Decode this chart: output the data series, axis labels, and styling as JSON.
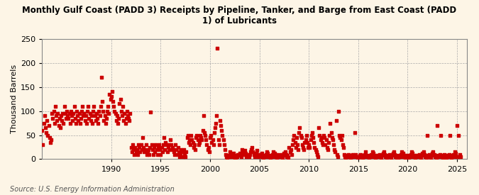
{
  "title": "Monthly Gulf Coast (PADD 3) Receipts by Pipeline, Tanker, and Barge from East Coast (PADD\n1) of Lubricants",
  "ylabel": "Thousand Barrels",
  "source": "Source: U.S. Energy Information Administration",
  "background_color": "#fdf5e6",
  "dot_color": "#cc0000",
  "grid_color": "#aaaaaa",
  "xlim": [
    1983,
    2026
  ],
  "ylim": [
    0,
    250
  ],
  "yticks": [
    0,
    50,
    100,
    150,
    200,
    250
  ],
  "xticks": [
    1990,
    1995,
    2000,
    2005,
    2010,
    2015,
    2020,
    2025
  ],
  "start_year": 1983,
  "start_month": 1,
  "values": [
    60,
    30,
    75,
    90,
    65,
    55,
    80,
    50,
    70,
    45,
    35,
    40,
    95,
    85,
    100,
    75,
    110,
    90,
    80,
    95,
    70,
    85,
    65,
    90,
    80,
    95,
    75,
    110,
    95,
    85,
    100,
    90,
    85,
    95,
    75,
    100,
    90,
    80,
    95,
    110,
    85,
    75,
    100,
    90,
    80,
    95,
    75,
    85,
    100,
    110,
    90,
    95,
    80,
    90,
    75,
    100,
    110,
    85,
    95,
    80,
    90,
    75,
    100,
    110,
    90,
    80,
    95,
    85,
    75,
    100,
    90,
    110,
    170,
    120,
    100,
    80,
    90,
    75,
    85,
    100,
    110,
    95,
    135,
    125,
    130,
    140,
    120,
    110,
    100,
    95,
    80,
    90,
    75,
    85,
    115,
    125,
    100,
    90,
    110,
    80,
    95,
    75,
    85,
    100,
    90,
    85,
    80,
    95,
    25,
    15,
    30,
    20,
    10,
    25,
    15,
    20,
    10,
    30,
    25,
    15,
    30,
    20,
    45,
    25,
    15,
    20,
    30,
    10,
    15,
    20,
    10,
    25,
    98,
    30,
    20,
    10,
    25,
    15,
    30,
    20,
    10,
    25,
    30,
    20,
    10,
    25,
    15,
    30,
    45,
    20,
    35,
    30,
    15,
    25,
    30,
    20,
    40,
    30,
    25,
    20,
    15,
    10,
    30,
    20,
    10,
    25,
    15,
    5,
    10,
    20,
    15,
    5,
    20,
    10,
    5,
    15,
    45,
    50,
    35,
    40,
    30,
    50,
    40,
    35,
    25,
    30,
    20,
    45,
    50,
    40,
    30,
    35,
    50,
    45,
    40,
    60,
    90,
    55,
    50,
    40,
    30,
    20,
    25,
    15,
    45,
    50,
    35,
    40,
    30,
    55,
    65,
    75,
    90,
    230,
    40,
    30,
    80,
    70,
    60,
    50,
    40,
    30,
    20,
    10,
    5,
    0,
    8,
    5,
    15,
    10,
    5,
    8,
    12,
    5,
    0,
    3,
    8,
    5,
    10,
    8,
    12,
    8,
    5,
    20,
    15,
    10,
    18,
    12,
    5,
    8,
    10,
    5,
    10,
    15,
    20,
    25,
    15,
    10,
    5,
    8,
    12,
    18,
    10,
    5,
    10,
    5,
    8,
    12,
    5,
    3,
    8,
    5,
    10,
    15,
    12,
    5,
    5,
    3,
    8,
    5,
    10,
    15,
    12,
    5,
    8,
    3,
    10,
    5,
    5,
    8,
    10,
    5,
    3,
    8,
    12,
    15,
    10,
    5,
    8,
    3,
    25,
    15,
    20,
    10,
    30,
    40,
    50,
    35,
    25,
    45,
    30,
    20,
    55,
    65,
    50,
    45,
    30,
    25,
    20,
    35,
    40,
    50,
    35,
    25,
    30,
    25,
    40,
    50,
    55,
    45,
    35,
    25,
    20,
    15,
    10,
    5,
    65,
    50,
    40,
    45,
    35,
    30,
    50,
    45,
    30,
    40,
    25,
    20,
    35,
    50,
    75,
    55,
    45,
    40,
    30,
    20,
    15,
    80,
    10,
    5,
    100,
    50,
    45,
    40,
    50,
    30,
    25,
    10,
    5,
    0,
    8,
    5,
    10,
    5,
    8,
    3,
    5,
    10,
    8,
    5,
    55,
    10,
    5,
    3,
    3,
    5,
    8,
    10,
    5,
    3,
    8,
    5,
    10,
    15,
    8,
    5,
    5,
    3,
    8,
    5,
    10,
    15,
    12,
    5,
    8,
    3,
    5,
    8,
    5,
    8,
    10,
    5,
    3,
    8,
    12,
    15,
    10,
    5,
    8,
    3,
    5,
    8,
    10,
    5,
    3,
    8,
    12,
    15,
    10,
    5,
    8,
    3,
    3,
    5,
    8,
    5,
    10,
    15,
    12,
    5,
    8,
    3,
    5,
    8,
    5,
    3,
    8,
    5,
    10,
    15,
    12,
    5,
    8,
    3,
    5,
    8,
    5,
    8,
    10,
    5,
    3,
    8,
    12,
    15,
    10,
    5,
    8,
    3,
    50,
    8,
    10,
    5,
    3,
    8,
    12,
    15,
    10,
    5,
    8,
    3,
    70,
    5,
    8,
    10,
    50,
    5,
    8,
    3,
    10,
    5,
    8,
    3,
    5,
    8,
    10,
    50,
    5,
    3,
    8,
    5,
    10,
    15,
    12,
    5,
    70,
    5,
    50,
    10,
    5
  ]
}
